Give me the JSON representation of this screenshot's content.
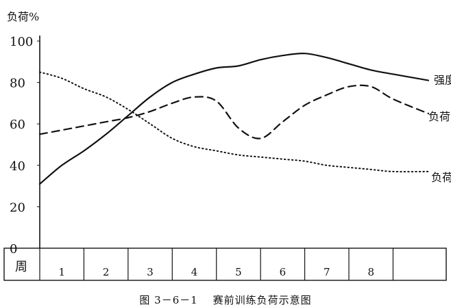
{
  "chart_data": {
    "type": "line",
    "ylabel": "负荷%",
    "ylim": [
      0,
      100
    ],
    "y_ticks": [
      "0",
      "20",
      "40",
      "60",
      "80",
      "100"
    ],
    "x_axis_label": "周",
    "categories": [
      "1",
      "2",
      "3",
      "4",
      "5",
      "6",
      "7",
      "8"
    ],
    "x_range_weeks": [
      0,
      8.8
    ],
    "grid": false,
    "series": [
      {
        "name": "强度",
        "style": "solid",
        "x": [
          0,
          0.5,
          1,
          1.5,
          2,
          2.5,
          3,
          3.5,
          4,
          4.5,
          5,
          5.5,
          6,
          6.5,
          7,
          7.5,
          8,
          8.8
        ],
        "y": [
          31,
          40,
          47,
          55,
          64,
          73,
          80,
          84,
          87,
          88,
          91,
          93,
          94,
          92,
          89,
          86,
          84,
          81
        ]
      },
      {
        "name": "负荷总量",
        "style": "dashed",
        "x": [
          0,
          0.5,
          1,
          1.5,
          2,
          2.5,
          3,
          3.5,
          4,
          4.5,
          5,
          5.5,
          6,
          6.5,
          7,
          7.5,
          8,
          8.8
        ],
        "y": [
          55,
          57,
          59,
          61,
          63,
          66,
          70,
          73,
          71,
          58,
          53,
          61,
          69,
          74,
          78,
          78,
          72,
          65
        ]
      },
      {
        "name": "负荷 量",
        "style": "dotted",
        "x": [
          0,
          0.5,
          1,
          1.5,
          2,
          2.5,
          3,
          3.5,
          4,
          4.5,
          5,
          5.5,
          6,
          6.5,
          7,
          7.5,
          8,
          8.8
        ],
        "y": [
          85,
          82,
          77,
          73,
          67,
          60,
          53,
          49,
          47,
          45,
          44,
          43,
          42,
          40,
          39,
          38,
          37,
          37
        ]
      }
    ],
    "legend": "inline labels at right end of each line",
    "caption": "图 3－6－1　 赛前训练负荷示意图",
    "colors": {
      "line": "#111111",
      "background": "#ffffff"
    }
  }
}
